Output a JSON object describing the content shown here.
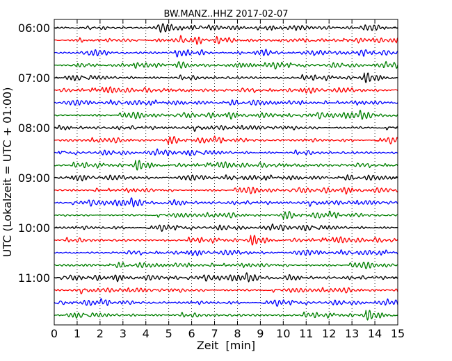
{
  "chart_data": {
    "type": "line",
    "title": "BW.MANZ..HHZ 2017-02-07",
    "xlabel": "Zeit  [min]",
    "ylabel": "UTC (Lokalzeit = UTC + 01:00)",
    "xlim": [
      0,
      15
    ],
    "x_ticks": [
      "0",
      "1",
      "2",
      "3",
      "4",
      "5",
      "6",
      "7",
      "8",
      "9",
      "10",
      "11",
      "12",
      "13",
      "14",
      "15"
    ],
    "y_tick_labels": [
      "06:00",
      "07:00",
      "08:00",
      "09:00",
      "10:00",
      "11:00"
    ],
    "grid": "vertical dotted lines at each minute",
    "trace_colors": [
      "#000000",
      "#ff0000",
      "#0000ff",
      "#008000"
    ],
    "traces_per_hour": 4,
    "minutes_per_trace": 15,
    "series_starts": [
      "06:00",
      "06:15",
      "06:30",
      "06:45",
      "07:00",
      "07:15",
      "07:30",
      "07:45",
      "08:00",
      "08:15",
      "08:30",
      "08:45",
      "09:00",
      "09:15",
      "09:30",
      "09:45",
      "10:00",
      "10:15",
      "10:30",
      "10:45",
      "11:00",
      "11:15",
      "11:30",
      "11:45"
    ]
  }
}
